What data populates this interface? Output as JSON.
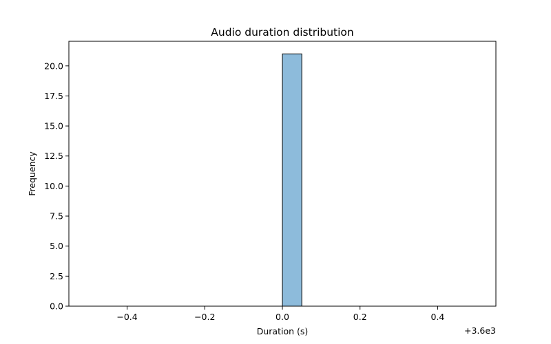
{
  "chart_data": {
    "type": "bar",
    "title": "Audio duration distribution",
    "xlabel": "Duration (s)",
    "ylabel": "Frequency",
    "x_offset_label": "+3.6e3",
    "xlim": [
      -0.55,
      0.55
    ],
    "ylim": [
      0,
      22.05
    ],
    "xticks": [
      -0.4,
      -0.2,
      0.0,
      0.2,
      0.4
    ],
    "xtick_labels": [
      "−0.4",
      "−0.2",
      "0.0",
      "0.2",
      "0.4"
    ],
    "yticks": [
      0,
      2.5,
      5,
      7.5,
      10,
      12.5,
      15,
      17.5,
      20
    ],
    "ytick_labels": [
      "0.0",
      "2.5",
      "5.0",
      "7.5",
      "10.0",
      "12.5",
      "15.0",
      "17.5",
      "20.0"
    ],
    "bins": [
      {
        "x0": -0.5,
        "x1": -0.45,
        "count": 0
      },
      {
        "x0": -0.45,
        "x1": -0.4,
        "count": 0
      },
      {
        "x0": -0.4,
        "x1": -0.35,
        "count": 0
      },
      {
        "x0": -0.35,
        "x1": -0.3,
        "count": 0
      },
      {
        "x0": -0.3,
        "x1": -0.25,
        "count": 0
      },
      {
        "x0": -0.25,
        "x1": -0.2,
        "count": 0
      },
      {
        "x0": -0.2,
        "x1": -0.15,
        "count": 0
      },
      {
        "x0": -0.15,
        "x1": -0.1,
        "count": 0
      },
      {
        "x0": -0.1,
        "x1": -0.05,
        "count": 0
      },
      {
        "x0": -0.05,
        "x1": 0.0,
        "count": 0
      },
      {
        "x0": 0.0,
        "x1": 0.05,
        "count": 21
      },
      {
        "x0": 0.05,
        "x1": 0.1,
        "count": 0
      },
      {
        "x0": 0.1,
        "x1": 0.15,
        "count": 0
      },
      {
        "x0": 0.15,
        "x1": 0.2,
        "count": 0
      },
      {
        "x0": 0.2,
        "x1": 0.25,
        "count": 0
      },
      {
        "x0": 0.25,
        "x1": 0.3,
        "count": 0
      },
      {
        "x0": 0.3,
        "x1": 0.35,
        "count": 0
      },
      {
        "x0": 0.35,
        "x1": 0.4,
        "count": 0
      },
      {
        "x0": 0.4,
        "x1": 0.45,
        "count": 0
      },
      {
        "x0": 0.45,
        "x1": 0.5,
        "count": 0
      }
    ],
    "bar_color": "#8dbbdb",
    "edge_color": "#000000",
    "grid": false,
    "legend": "none"
  }
}
